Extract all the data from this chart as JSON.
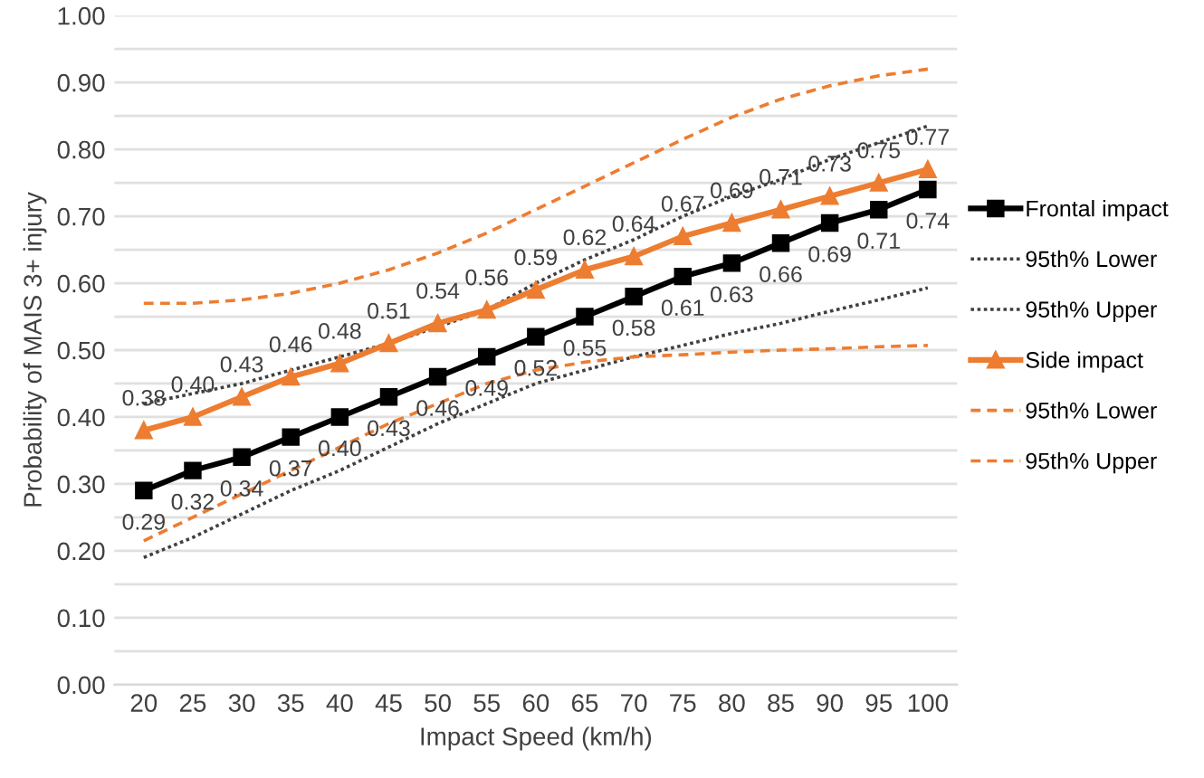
{
  "chart_data": {
    "type": "line",
    "xlabel": "Impact Speed (km/h)",
    "ylabel": "Probability of MAIS 3+ injury",
    "categories": [
      "20",
      "25",
      "30",
      "35",
      "40",
      "45",
      "50",
      "55",
      "60",
      "65",
      "70",
      "75",
      "80",
      "85",
      "90",
      "95",
      "100"
    ],
    "ylim": [
      0,
      1
    ],
    "yticks": [
      "0.00",
      {
        "value": 0.05,
        "label": null
      },
      "0.10",
      {
        "value": 0.15,
        "label": null
      },
      "0.20",
      {
        "value": 0.25,
        "label": null
      },
      "0.30",
      {
        "value": 0.35,
        "label": null
      },
      "0.40",
      {
        "value": 0.45,
        "label": null
      },
      "0.50",
      {
        "value": 0.55,
        "label": null
      },
      "0.60",
      {
        "value": 0.65,
        "label": null
      },
      "0.70",
      {
        "value": 0.75,
        "label": null
      },
      "0.80",
      {
        "value": 0.85,
        "label": null
      },
      "0.90",
      {
        "value": 0.95,
        "label": null
      },
      "1.00"
    ],
    "grid": "y",
    "legend": "right",
    "series": [
      {
        "name": "Frontal impact",
        "color": "#000000",
        "marker": "square",
        "line_style": "solid",
        "values": [
          0.29,
          0.32,
          0.34,
          0.37,
          0.4,
          0.43,
          0.46,
          0.49,
          0.52,
          0.55,
          0.58,
          0.61,
          0.63,
          0.66,
          0.69,
          0.71,
          0.74
        ],
        "value_labels": [
          "0.29",
          "0.32",
          "0.34",
          "0.37",
          "0.40",
          "0.43",
          "0.46",
          "0.49",
          "0.52",
          "0.55",
          "0.58",
          "0.61",
          "0.63",
          "0.66",
          "0.69",
          "0.71",
          "0.74"
        ]
      },
      {
        "name": "95th% Lower",
        "color": "#404040",
        "marker": "none",
        "line_style": "dotted",
        "values": [
          0.19,
          0.22,
          0.255,
          0.29,
          0.32,
          0.355,
          0.39,
          0.42,
          0.45,
          0.47,
          0.49,
          0.507,
          0.525,
          0.54,
          0.558,
          0.575,
          0.593
        ]
      },
      {
        "name": "95th% Upper",
        "color": "#404040",
        "marker": "none",
        "line_style": "dotted",
        "values": [
          0.42,
          0.435,
          0.45,
          0.47,
          0.49,
          0.51,
          0.535,
          0.56,
          0.6,
          0.635,
          0.665,
          0.7,
          0.73,
          0.755,
          0.785,
          0.81,
          0.835
        ]
      },
      {
        "name": "Side impact",
        "color": "#ed7d31",
        "marker": "triangle",
        "line_style": "solid",
        "values": [
          0.38,
          0.4,
          0.43,
          0.46,
          0.48,
          0.51,
          0.54,
          0.56,
          0.59,
          0.62,
          0.64,
          0.67,
          0.69,
          0.71,
          0.73,
          0.75,
          0.77
        ],
        "value_labels": [
          "0.38",
          "0.40",
          "0.43",
          "0.46",
          "0.48",
          "0.51",
          "0.54",
          "0.56",
          "0.59",
          "0.62",
          "0.64",
          "0.67",
          "0.69",
          "0.71",
          "0.73",
          "0.75",
          "0.77"
        ]
      },
      {
        "name": "95th% Lower",
        "color": "#ed7d31",
        "marker": "none",
        "line_style": "dashed",
        "values": [
          0.215,
          0.25,
          0.285,
          0.32,
          0.355,
          0.39,
          0.42,
          0.45,
          0.47,
          0.482,
          0.49,
          0.493,
          0.497,
          0.5,
          0.502,
          0.505,
          0.507
        ]
      },
      {
        "name": "95th% Upper",
        "color": "#ed7d31",
        "marker": "none",
        "line_style": "dashed",
        "values": [
          0.57,
          0.57,
          0.575,
          0.585,
          0.6,
          0.62,
          0.645,
          0.675,
          0.71,
          0.745,
          0.78,
          0.815,
          0.848,
          0.875,
          0.895,
          0.91,
          0.92
        ]
      }
    ]
  }
}
